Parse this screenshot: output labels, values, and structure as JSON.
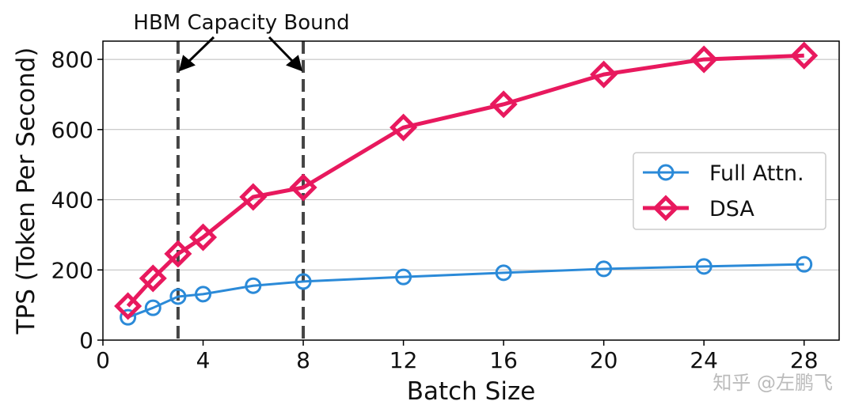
{
  "chart_data": {
    "type": "line",
    "title": "",
    "xlabel": "Batch Size",
    "ylabel": "TPS (Token Per Second)",
    "xlim": [
      0,
      29.4
    ],
    "ylim": [
      0,
      852
    ],
    "xticks": [
      0,
      4,
      8,
      12,
      16,
      20,
      24,
      28
    ],
    "yticks": [
      0,
      200,
      400,
      600,
      800
    ],
    "grid": "horizontal",
    "legend_position": "center-right",
    "x": [
      1,
      2,
      3,
      4,
      6,
      8,
      12,
      16,
      20,
      24,
      28
    ],
    "series": [
      {
        "name": "Full Attn.",
        "color": "#2b8ad8",
        "marker": "circle",
        "values": [
          65,
          92,
          124,
          131,
          155,
          167,
          180,
          192,
          203,
          210,
          216
        ]
      },
      {
        "name": "DSA",
        "color": "#e8195e",
        "marker": "diamond",
        "values": [
          97,
          176,
          246,
          293,
          408,
          435,
          606,
          672,
          757,
          800,
          811
        ]
      }
    ],
    "annotations": {
      "text": "HBM Capacity Bound",
      "vlines": [
        3,
        8
      ],
      "vline_color": "#444444"
    }
  },
  "watermark": "知乎 @左鹏飞"
}
